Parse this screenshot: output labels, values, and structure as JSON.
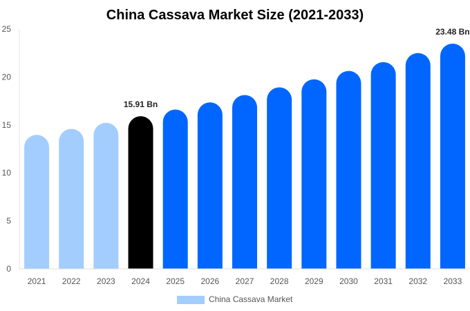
{
  "chart_data": {
    "type": "bar",
    "title": "China Cassava Market Size (2021-2033)",
    "xlabel": "",
    "ylabel": "",
    "ylim": [
      0,
      25
    ],
    "yticks": [
      0,
      5,
      10,
      15,
      20,
      25
    ],
    "grid": false,
    "legend_position": "bottom",
    "categories": [
      "2021",
      "2022",
      "2023",
      "2024",
      "2025",
      "2026",
      "2027",
      "2028",
      "2029",
      "2030",
      "2031",
      "2032",
      "2033"
    ],
    "series": [
      {
        "name": "China Cassava Market",
        "values": [
          13.97,
          14.59,
          15.23,
          15.91,
          16.61,
          17.35,
          18.12,
          18.92,
          19.76,
          20.63,
          21.55,
          22.5,
          23.48
        ]
      }
    ],
    "data_labels": [
      {
        "category": "2024",
        "text": "15.91 Bn"
      },
      {
        "category": "2033",
        "text": "23.48 Bn"
      }
    ],
    "colors": {
      "historical": "#a3cdfd",
      "base_year": "#000000",
      "forecast": "#0066ff",
      "legend_swatch": "#a3cdfd"
    }
  }
}
